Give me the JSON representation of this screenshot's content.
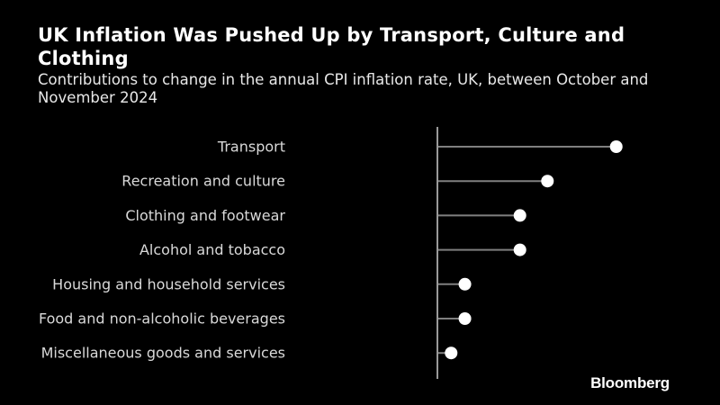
{
  "chart_data": {
    "type": "lollipop",
    "title": "UK Inflation Was Pushed Up by Transport, Culture and Clothing",
    "subtitle": "Contributions to change in the annual CPI inflation rate, UK, between October and November 2024",
    "categories": [
      "Transport",
      "Recreation and culture",
      "Clothing and footwear",
      "Alcohol and tobacco",
      "Housing and household services",
      "Food and non-alcoholic beverages",
      "Miscellaneous goods and services"
    ],
    "values": [
      0.13,
      0.08,
      0.06,
      0.06,
      0.02,
      0.02,
      0.01
    ],
    "xlim": [
      0,
      0.14
    ],
    "xlabel": "",
    "ylabel": "",
    "grid": false,
    "colors": {
      "background": "#000000",
      "stem": "#7f7f7f",
      "axis": "#9a9a9a",
      "marker": "#ffffff",
      "label": "#d9d9d9"
    }
  },
  "source_brand": "Bloomberg"
}
